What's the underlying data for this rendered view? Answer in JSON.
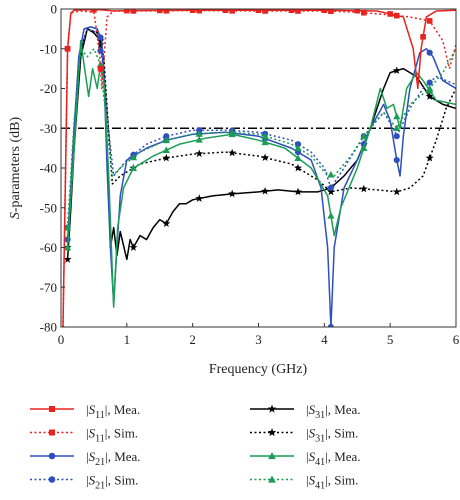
{
  "chart_data": {
    "type": "line",
    "xlabel": "Frequency (GHz)",
    "ylabel_prefix": "S",
    "ylabel_rest": "-parameters (dB)",
    "xlim": [
      0,
      6
    ],
    "ylim": [
      -80,
      0
    ],
    "xticks": [
      0,
      1,
      2,
      3,
      4,
      5,
      6
    ],
    "yticks": [
      0,
      -10,
      -20,
      -30,
      -40,
      -50,
      -60,
      -70,
      -80
    ],
    "reference_line": {
      "y": -30,
      "style": "dash-dot",
      "color": "#000000"
    },
    "grid": false,
    "legend_position": "bottom, outside plot, 2 columns",
    "series": [
      {
        "name": "|S11|, Mea.",
        "sub": "11",
        "kind": "Mea.",
        "color": "#e8221d",
        "dash": "solid",
        "marker": "square",
        "points": [
          [
            0.03,
            -80
          ],
          [
            0.07,
            -40
          ],
          [
            0.1,
            -10
          ],
          [
            0.15,
            -1
          ],
          [
            0.2,
            -0.3
          ],
          [
            0.4,
            -0.2
          ],
          [
            0.6,
            -0.2
          ],
          [
            0.8,
            -0.5
          ],
          [
            1,
            -0.4
          ],
          [
            2,
            -0.3
          ],
          [
            3,
            -0.3
          ],
          [
            4,
            -0.3
          ],
          [
            4.8,
            -0.5
          ],
          [
            5.2,
            -2
          ],
          [
            5.35,
            -10
          ],
          [
            5.42,
            -20
          ],
          [
            5.47,
            -10
          ],
          [
            5.55,
            -2
          ],
          [
            5.7,
            -0.5
          ],
          [
            6,
            -0.3
          ]
        ],
        "marker_x": [
          0.1,
          0.5,
          1,
          1.5,
          2,
          2.5,
          3,
          3.5,
          4,
          4.5,
          5,
          5.5
        ]
      },
      {
        "name": "|S11|, Sim.",
        "sub": "11",
        "kind": "Sim.",
        "color": "#e8221d",
        "dash": "dot",
        "marker": "square",
        "points": [
          [
            0.03,
            -80
          ],
          [
            0.07,
            -40
          ],
          [
            0.1,
            -10
          ],
          [
            0.15,
            -1
          ],
          [
            0.3,
            -0.5
          ],
          [
            0.5,
            -0.8
          ],
          [
            0.58,
            -10
          ],
          [
            0.62,
            -20
          ],
          [
            0.7,
            -2
          ],
          [
            0.8,
            -0.5
          ],
          [
            1,
            -0.5
          ],
          [
            2,
            -0.4
          ],
          [
            3,
            -0.5
          ],
          [
            4,
            -0.5
          ],
          [
            4.5,
            -0.8
          ],
          [
            5,
            -1.5
          ],
          [
            5.3,
            -2
          ],
          [
            5.6,
            -3
          ],
          [
            5.8,
            -8
          ],
          [
            5.9,
            -15
          ],
          [
            6,
            -9
          ]
        ],
        "marker_x": [
          0.1,
          0.6,
          1.1,
          1.6,
          2.1,
          2.6,
          3.1,
          3.6,
          4.1,
          4.6,
          5.1,
          5.6
        ]
      },
      {
        "name": "|S21|, Mea.",
        "sub": "21",
        "kind": "Mea.",
        "color": "#2e4fbe",
        "dash": "solid",
        "marker": "circle",
        "points": [
          [
            0.1,
            -58
          ],
          [
            0.15,
            -45
          ],
          [
            0.2,
            -30
          ],
          [
            0.27,
            -12
          ],
          [
            0.35,
            -5
          ],
          [
            0.45,
            -4.5
          ],
          [
            0.55,
            -5
          ],
          [
            0.62,
            -8
          ],
          [
            0.66,
            -20
          ],
          [
            0.7,
            -40
          ],
          [
            0.75,
            -60
          ],
          [
            0.8,
            -74
          ],
          [
            0.85,
            -60
          ],
          [
            0.9,
            -47
          ],
          [
            1,
            -38
          ],
          [
            1.3,
            -35
          ],
          [
            1.6,
            -33
          ],
          [
            2,
            -31.5
          ],
          [
            2.5,
            -31
          ],
          [
            3,
            -32
          ],
          [
            3.5,
            -35
          ],
          [
            3.8,
            -38
          ],
          [
            3.95,
            -45
          ],
          [
            4.05,
            -60
          ],
          [
            4.1,
            -80
          ],
          [
            4.15,
            -60
          ],
          [
            4.3,
            -45
          ],
          [
            4.5,
            -38
          ],
          [
            4.7,
            -30
          ],
          [
            4.9,
            -24
          ],
          [
            5,
            -28
          ],
          [
            5.1,
            -38
          ],
          [
            5.15,
            -42
          ],
          [
            5.2,
            -32
          ],
          [
            5.3,
            -20
          ],
          [
            5.45,
            -11
          ],
          [
            5.55,
            -10
          ],
          [
            5.65,
            -12
          ],
          [
            5.8,
            -18
          ],
          [
            6,
            -20
          ]
        ],
        "marker_x": [
          0.1,
          0.6,
          1.1,
          1.6,
          2.1,
          2.6,
          3.1,
          3.6,
          4.1,
          4.6,
          5.1,
          5.6
        ]
      },
      {
        "name": "|S21|, Sim.",
        "sub": "21",
        "kind": "Sim.",
        "color": "#2e4fbe",
        "dash": "dot",
        "marker": "circle",
        "points": [
          [
            0.1,
            -55
          ],
          [
            0.2,
            -30
          ],
          [
            0.3,
            -10
          ],
          [
            0.4,
            -5
          ],
          [
            0.55,
            -6
          ],
          [
            0.65,
            -15
          ],
          [
            0.72,
            -30
          ],
          [
            0.8,
            -42
          ],
          [
            1,
            -38
          ],
          [
            1.3,
            -34
          ],
          [
            1.6,
            -32
          ],
          [
            2,
            -30.5
          ],
          [
            2.5,
            -30.5
          ],
          [
            3,
            -31
          ],
          [
            3.5,
            -33
          ],
          [
            3.8,
            -36
          ],
          [
            4,
            -40
          ],
          [
            4.1,
            -45
          ],
          [
            4.3,
            -40
          ],
          [
            4.6,
            -32
          ],
          [
            4.9,
            -26
          ],
          [
            5.05,
            -30
          ],
          [
            5.1,
            -32
          ],
          [
            5.3,
            -25
          ],
          [
            5.5,
            -20
          ],
          [
            5.7,
            -17
          ],
          [
            6,
            -19
          ]
        ],
        "marker_x": [
          0.1,
          0.6,
          1.1,
          1.6,
          2.1,
          2.6,
          3.1,
          3.6,
          4.1,
          4.6,
          5.1,
          5.6
        ]
      },
      {
        "name": "|S31|, Mea.",
        "sub": "31",
        "kind": "Mea.",
        "color": "#000000",
        "dash": "solid",
        "marker": "star",
        "points": [
          [
            0.1,
            -63
          ],
          [
            0.15,
            -50
          ],
          [
            0.2,
            -35
          ],
          [
            0.3,
            -12
          ],
          [
            0.4,
            -5
          ],
          [
            0.5,
            -6
          ],
          [
            0.6,
            -8
          ],
          [
            0.65,
            -15
          ],
          [
            0.72,
            -42
          ],
          [
            0.75,
            -60
          ],
          [
            0.8,
            -55
          ],
          [
            0.85,
            -62
          ],
          [
            0.9,
            -56
          ],
          [
            1,
            -63
          ],
          [
            1.05,
            -58
          ],
          [
            1.1,
            -60
          ],
          [
            1.2,
            -57
          ],
          [
            1.3,
            -58
          ],
          [
            1.4,
            -55
          ],
          [
            1.5,
            -53
          ],
          [
            1.6,
            -54
          ],
          [
            1.7,
            -51
          ],
          [
            1.8,
            -49
          ],
          [
            1.9,
            -49
          ],
          [
            2,
            -48
          ],
          [
            2.3,
            -47
          ],
          [
            2.6,
            -46.5
          ],
          [
            3,
            -46
          ],
          [
            3.3,
            -45.5
          ],
          [
            3.6,
            -46
          ],
          [
            3.9,
            -46
          ],
          [
            4.1,
            -45
          ],
          [
            4.3,
            -42
          ],
          [
            4.5,
            -38
          ],
          [
            4.7,
            -30
          ],
          [
            4.8,
            -25
          ],
          [
            4.9,
            -20
          ],
          [
            5,
            -16
          ],
          [
            5.2,
            -15
          ],
          [
            5.4,
            -17
          ],
          [
            5.6,
            -22
          ],
          [
            5.8,
            -24
          ],
          [
            6,
            -25
          ]
        ],
        "marker_x": [
          0.1,
          0.6,
          1.1,
          1.6,
          2.1,
          2.6,
          3.1,
          3.6,
          4.1,
          4.6,
          5.1,
          5.6
        ]
      },
      {
        "name": "|S31|, Sim.",
        "sub": "31",
        "kind": "Sim.",
        "color": "#000000",
        "dash": "dot",
        "marker": "star",
        "points": [
          [
            0.1,
            -60
          ],
          [
            0.2,
            -30
          ],
          [
            0.3,
            -10
          ],
          [
            0.4,
            -5
          ],
          [
            0.55,
            -6
          ],
          [
            0.65,
            -12
          ],
          [
            0.72,
            -30
          ],
          [
            0.78,
            -44
          ],
          [
            0.9,
            -42
          ],
          [
            1.2,
            -39
          ],
          [
            1.6,
            -37.5
          ],
          [
            2,
            -36.5
          ],
          [
            2.5,
            -36
          ],
          [
            3,
            -37
          ],
          [
            3.5,
            -39
          ],
          [
            3.9,
            -43
          ],
          [
            4.1,
            -46
          ],
          [
            4.4,
            -45
          ],
          [
            4.8,
            -45.5
          ],
          [
            5.1,
            -46
          ],
          [
            5.3,
            -45
          ],
          [
            5.5,
            -42
          ],
          [
            5.7,
            -33
          ],
          [
            5.85,
            -25
          ],
          [
            6,
            -20
          ]
        ],
        "marker_x": [
          0.1,
          0.6,
          1.1,
          1.6,
          2.1,
          2.6,
          3.1,
          3.6,
          4.1,
          4.6,
          5.1,
          5.6
        ]
      },
      {
        "name": "|S41|, Mea.",
        "sub": "41",
        "kind": "Mea.",
        "color": "#1a9e56",
        "dash": "solid",
        "marker": "triangle",
        "points": [
          [
            0.1,
            -60
          ],
          [
            0.2,
            -35
          ],
          [
            0.3,
            -8
          ],
          [
            0.35,
            -14
          ],
          [
            0.42,
            -22
          ],
          [
            0.48,
            -15
          ],
          [
            0.55,
            -20
          ],
          [
            0.6,
            -14
          ],
          [
            0.65,
            -18
          ],
          [
            0.72,
            -40
          ],
          [
            0.8,
            -75
          ],
          [
            0.86,
            -55
          ],
          [
            0.95,
            -45
          ],
          [
            1.1,
            -40
          ],
          [
            1.4,
            -37
          ],
          [
            1.8,
            -34
          ],
          [
            2.2,
            -32.5
          ],
          [
            2.6,
            -31.5
          ],
          [
            3,
            -33
          ],
          [
            3.4,
            -35
          ],
          [
            3.8,
            -40
          ],
          [
            4.05,
            -47
          ],
          [
            4.15,
            -57
          ],
          [
            4.25,
            -50
          ],
          [
            4.5,
            -40
          ],
          [
            4.7,
            -30
          ],
          [
            4.85,
            -20
          ],
          [
            4.95,
            -25
          ],
          [
            5.05,
            -24
          ],
          [
            5.15,
            -30
          ],
          [
            5.25,
            -20
          ],
          [
            5.4,
            -16
          ],
          [
            5.5,
            -18
          ],
          [
            5.7,
            -23
          ],
          [
            6,
            -24
          ]
        ],
        "marker_x": [
          0.1,
          0.6,
          1.1,
          1.6,
          2.1,
          2.6,
          3.1,
          3.6,
          4.1,
          4.6,
          5.1,
          5.6
        ]
      },
      {
        "name": "|S41|, Sim.",
        "sub": "41",
        "kind": "Sim.",
        "color": "#1a9e56",
        "dash": "dot",
        "marker": "triangle",
        "points": [
          [
            0.1,
            -55
          ],
          [
            0.2,
            -28
          ],
          [
            0.3,
            -10
          ],
          [
            0.4,
            -12
          ],
          [
            0.5,
            -10
          ],
          [
            0.6,
            -14
          ],
          [
            0.7,
            -30
          ],
          [
            0.78,
            -42
          ],
          [
            0.9,
            -40
          ],
          [
            1.2,
            -36
          ],
          [
            1.6,
            -33
          ],
          [
            2,
            -31.5
          ],
          [
            2.5,
            -31
          ],
          [
            3,
            -31.5
          ],
          [
            3.5,
            -34
          ],
          [
            3.8,
            -37
          ],
          [
            4,
            -41
          ],
          [
            4.15,
            -42
          ],
          [
            4.4,
            -37
          ],
          [
            4.6,
            -32
          ],
          [
            4.9,
            -26
          ],
          [
            5.1,
            -30
          ],
          [
            5.3,
            -24
          ],
          [
            5.6,
            -20
          ],
          [
            5.8,
            -16
          ],
          [
            6,
            -10
          ]
        ],
        "marker_x": [
          0.1,
          0.6,
          1.1,
          1.6,
          2.1,
          2.6,
          3.1,
          3.6,
          4.1,
          4.6,
          5.1,
          5.6
        ]
      }
    ],
    "legend": [
      {
        "series": 0,
        "pipe_open": "|",
        "sym": "S",
        "sub": "11",
        "rest": "|, Mea."
      },
      {
        "series": 4,
        "pipe_open": "|",
        "sym": "S",
        "sub": "31",
        "rest": "|, Mea."
      },
      {
        "series": 1,
        "pipe_open": "|",
        "sym": "S",
        "sub": "11",
        "rest": "|, Sim."
      },
      {
        "series": 5,
        "pipe_open": "|",
        "sym": "S",
        "sub": "31",
        "rest": "|, Sim."
      },
      {
        "series": 2,
        "pipe_open": "|",
        "sym": "S",
        "sub": "21",
        "rest": "|, Mea."
      },
      {
        "series": 6,
        "pipe_open": "|",
        "sym": "S",
        "sub": "41",
        "rest": "|, Mea."
      },
      {
        "series": 3,
        "pipe_open": "|",
        "sym": "S",
        "sub": "21",
        "rest": "|, Sim."
      },
      {
        "series": 7,
        "pipe_open": "|",
        "sym": "S",
        "sub": "41",
        "rest": "|, Sim."
      }
    ]
  }
}
